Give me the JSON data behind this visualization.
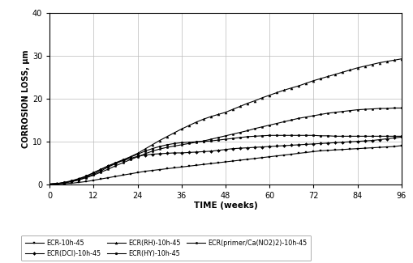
{
  "title": "",
  "xlabel": "TIME (weeks)",
  "ylabel": "CORROSION LOSS, µm",
  "xlim": [
    0,
    96
  ],
  "ylim": [
    0,
    40
  ],
  "xticks": [
    0,
    12,
    24,
    36,
    48,
    60,
    72,
    84,
    96
  ],
  "yticks": [
    0,
    10,
    20,
    30,
    40
  ],
  "background_color": "#ffffff",
  "grid_color": "#bbbbbb",
  "series": [
    {
      "label": "ECR-10h-45",
      "marker": "s",
      "color": "#000000",
      "linewidth": 0.8,
      "markersize": 2.0,
      "markevery": 1,
      "x": [
        0,
        2,
        4,
        6,
        8,
        10,
        12,
        14,
        16,
        18,
        20,
        22,
        24,
        26,
        28,
        30,
        32,
        34,
        36,
        38,
        40,
        42,
        44,
        46,
        48,
        50,
        52,
        54,
        56,
        58,
        60,
        62,
        64,
        66,
        68,
        70,
        72,
        74,
        76,
        78,
        80,
        82,
        84,
        86,
        88,
        90,
        92,
        94,
        96
      ],
      "y": [
        0,
        0.05,
        0.1,
        0.2,
        0.4,
        0.6,
        0.9,
        1.2,
        1.5,
        1.8,
        2.1,
        2.4,
        2.7,
        3.0,
        3.2,
        3.4,
        3.6,
        3.8,
        4.0,
        4.2,
        4.4,
        4.6,
        4.8,
        5.0,
        5.2,
        5.4,
        5.6,
        5.8,
        6.0,
        6.2,
        6.4,
        6.6,
        6.8,
        7.0,
        7.2,
        7.4,
        7.6,
        7.8,
        7.9,
        8.0,
        8.1,
        8.2,
        8.3,
        8.4,
        8.5,
        8.6,
        8.7,
        8.8,
        9.0
      ]
    },
    {
      "label": "ECR(DCI)-10h-45",
      "marker": "D",
      "color": "#000000",
      "linewidth": 0.8,
      "markersize": 2.0,
      "markevery": 1,
      "x": [
        0,
        2,
        4,
        6,
        8,
        10,
        12,
        14,
        16,
        18,
        20,
        22,
        24,
        26,
        28,
        30,
        32,
        34,
        36,
        38,
        40,
        42,
        44,
        46,
        48,
        50,
        52,
        54,
        56,
        58,
        60,
        62,
        64,
        66,
        68,
        70,
        72,
        74,
        76,
        78,
        80,
        82,
        84,
        86,
        88,
        90,
        92,
        94,
        96
      ],
      "y": [
        0,
        0.1,
        0.3,
        0.7,
        1.2,
        1.8,
        2.6,
        3.4,
        4.2,
        4.9,
        5.5,
        6.0,
        6.5,
        6.8,
        7.0,
        7.1,
        7.2,
        7.3,
        7.3,
        7.4,
        7.5,
        7.6,
        7.7,
        7.9,
        8.1,
        8.3,
        8.4,
        8.5,
        8.6,
        8.7,
        8.8,
        8.9,
        9.0,
        9.1,
        9.2,
        9.3,
        9.4,
        9.5,
        9.6,
        9.7,
        9.8,
        9.9,
        10.0,
        10.1,
        10.2,
        10.4,
        10.6,
        10.8,
        11.0
      ]
    },
    {
      "label": "ECR(RH)-10h-45",
      "marker": "^",
      "color": "#000000",
      "linewidth": 0.8,
      "markersize": 2.2,
      "markevery": 1,
      "x": [
        0,
        2,
        4,
        6,
        8,
        10,
        12,
        14,
        16,
        18,
        20,
        22,
        24,
        26,
        28,
        30,
        32,
        34,
        36,
        38,
        40,
        42,
        44,
        46,
        48,
        50,
        52,
        54,
        56,
        58,
        60,
        62,
        64,
        66,
        68,
        70,
        72,
        74,
        76,
        78,
        80,
        82,
        84,
        86,
        88,
        90,
        92,
        94,
        96
      ],
      "y": [
        0,
        0.1,
        0.3,
        0.6,
        1.0,
        1.6,
        2.3,
        3.1,
        4.0,
        4.8,
        5.6,
        6.4,
        7.2,
        8.2,
        9.2,
        10.2,
        11.1,
        12.0,
        12.9,
        13.7,
        14.5,
        15.2,
        15.8,
        16.3,
        16.8,
        17.5,
        18.2,
        18.9,
        19.5,
        20.2,
        20.8,
        21.4,
        22.0,
        22.5,
        23.0,
        23.6,
        24.2,
        24.7,
        25.2,
        25.7,
        26.2,
        26.7,
        27.2,
        27.6,
        28.0,
        28.4,
        28.7,
        29.0,
        29.3
      ]
    },
    {
      "label": "ECR(HY)-10h-45",
      "marker": "o",
      "color": "#000000",
      "linewidth": 0.8,
      "markersize": 2.0,
      "markevery": 1,
      "x": [
        0,
        2,
        4,
        6,
        8,
        10,
        12,
        14,
        16,
        18,
        20,
        22,
        24,
        26,
        28,
        30,
        32,
        34,
        36,
        38,
        40,
        42,
        44,
        46,
        48,
        50,
        52,
        54,
        56,
        58,
        60,
        62,
        64,
        66,
        68,
        70,
        72,
        74,
        76,
        78,
        80,
        82,
        84,
        86,
        88,
        90,
        92,
        94,
        96
      ],
      "y": [
        0,
        0.15,
        0.4,
        0.8,
        1.3,
        1.9,
        2.7,
        3.5,
        4.3,
        5.0,
        5.7,
        6.3,
        7.0,
        7.7,
        8.3,
        8.8,
        9.2,
        9.5,
        9.7,
        9.8,
        9.9,
        10.0,
        10.1,
        10.3,
        10.5,
        10.7,
        10.9,
        11.1,
        11.2,
        11.3,
        11.4,
        11.4,
        11.4,
        11.4,
        11.4,
        11.4,
        11.4,
        11.3,
        11.3,
        11.2,
        11.2,
        11.2,
        11.2,
        11.2,
        11.2,
        11.2,
        11.2,
        11.2,
        11.2
      ]
    },
    {
      "label": "ECR(primer/Ca(NO2)2)-10h-45",
      "marker": "p",
      "color": "#000000",
      "linewidth": 0.8,
      "markersize": 2.0,
      "markevery": 1,
      "x": [
        0,
        2,
        4,
        6,
        8,
        10,
        12,
        14,
        16,
        18,
        20,
        22,
        24,
        26,
        28,
        30,
        32,
        34,
        36,
        38,
        40,
        42,
        44,
        46,
        48,
        50,
        52,
        54,
        56,
        58,
        60,
        62,
        64,
        66,
        68,
        70,
        72,
        74,
        76,
        78,
        80,
        82,
        84,
        86,
        88,
        90,
        92,
        94,
        96
      ],
      "y": [
        0,
        0.1,
        0.3,
        0.6,
        1.0,
        1.5,
        2.1,
        2.8,
        3.5,
        4.3,
        5.0,
        5.7,
        6.4,
        7.1,
        7.7,
        8.2,
        8.6,
        8.9,
        9.2,
        9.5,
        9.8,
        10.1,
        10.5,
        10.9,
        11.3,
        11.7,
        12.1,
        12.5,
        13.0,
        13.4,
        13.8,
        14.2,
        14.6,
        15.0,
        15.4,
        15.7,
        16.0,
        16.3,
        16.6,
        16.8,
        17.0,
        17.2,
        17.4,
        17.5,
        17.6,
        17.7,
        17.7,
        17.8,
        17.8
      ]
    }
  ],
  "legend_labels": [
    "ECR-10h-45",
    "ECR(DCI)-10h-45",
    "ECR(RH)-10h-45",
    "ECR(HY)-10h-45",
    "ECR(primer/Ca(NO2)2)-10h-45"
  ]
}
